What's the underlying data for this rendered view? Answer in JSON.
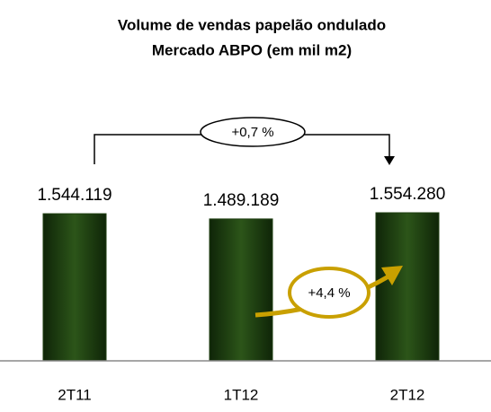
{
  "chart_data": {
    "type": "bar",
    "title": "Volume de vendas papelão ondulado",
    "subtitle": "Mercado ABPO (em mil m2)",
    "categories": [
      "2T11",
      "1T12",
      "2T12"
    ],
    "values": [
      1544119,
      1489189,
      1554280
    ],
    "value_labels": [
      "1.544.119",
      "1.489.189",
      "1.554.280"
    ],
    "color": "#1f3f12",
    "annotations": [
      "+0,7 %",
      "+4,4 %"
    ]
  }
}
